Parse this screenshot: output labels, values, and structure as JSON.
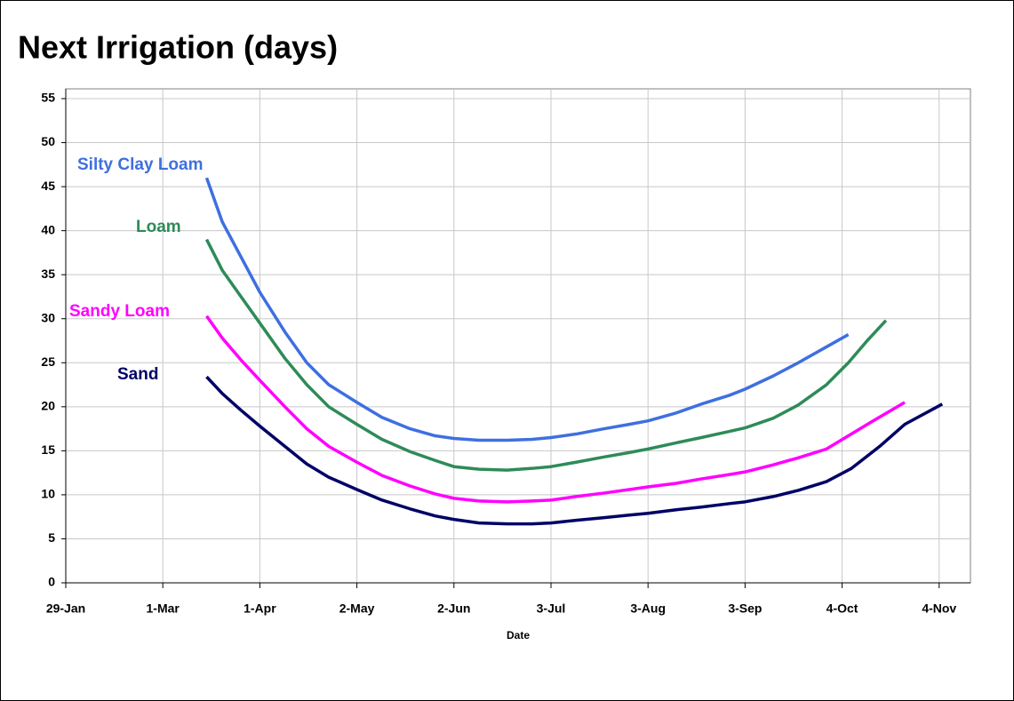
{
  "chart_data": {
    "type": "line",
    "title": "Next Irrigation (days)",
    "x_label": "Date",
    "xlim": [
      29,
      318
    ],
    "xticks": [
      {
        "value": 29,
        "label": "29-Jan"
      },
      {
        "value": 60,
        "label": "1-Mar"
      },
      {
        "value": 91,
        "label": "1-Apr"
      },
      {
        "value": 122,
        "label": "2-May"
      },
      {
        "value": 153,
        "label": "2-Jun"
      },
      {
        "value": 184,
        "label": "3-Jul"
      },
      {
        "value": 215,
        "label": "3-Aug"
      },
      {
        "value": 246,
        "label": "3-Sep"
      },
      {
        "value": 277,
        "label": "4-Oct"
      },
      {
        "value": 308,
        "label": "4-Nov"
      }
    ],
    "ylim": [
      0,
      55
    ],
    "yticks": [
      0,
      5,
      10,
      15,
      20,
      25,
      30,
      35,
      40,
      45,
      50,
      55
    ],
    "grid": true,
    "series": [
      {
        "name": "Silty Clay Loam",
        "color": "#3f6fe0",
        "x": [
          74,
          79,
          85,
          91,
          99,
          106,
          113,
          122,
          130,
          139,
          147,
          153,
          161,
          170,
          178,
          184,
          192,
          201,
          209,
          215,
          224,
          232,
          241,
          246,
          255,
          263,
          272,
          279
        ],
        "values": [
          46,
          41,
          37,
          33,
          28.5,
          25,
          22.5,
          20.5,
          18.8,
          17.5,
          16.7,
          16.4,
          16.2,
          16.2,
          16.3,
          16.5,
          16.9,
          17.5,
          18,
          18.4,
          19.3,
          20.3,
          21.3,
          22,
          23.5,
          25,
          26.8,
          28.2
        ]
      },
      {
        "name": "Loam",
        "color": "#2e8b57",
        "x": [
          74,
          79,
          85,
          91,
          99,
          106,
          113,
          122,
          130,
          139,
          147,
          153,
          161,
          170,
          178,
          184,
          192,
          201,
          209,
          215,
          224,
          232,
          241,
          246,
          255,
          263,
          272,
          279,
          285,
          291
        ],
        "values": [
          39,
          35.5,
          32.5,
          29.5,
          25.5,
          22.5,
          20,
          18,
          16.3,
          14.9,
          13.9,
          13.2,
          12.9,
          12.8,
          13,
          13.2,
          13.7,
          14.3,
          14.8,
          15.2,
          15.9,
          16.5,
          17.2,
          17.6,
          18.7,
          20.2,
          22.5,
          25,
          27.5,
          29.8
        ]
      },
      {
        "name": "Sandy Loam",
        "color": "#ff00ff",
        "x": [
          74,
          79,
          85,
          91,
          99,
          106,
          113,
          122,
          130,
          139,
          147,
          153,
          161,
          170,
          178,
          184,
          192,
          201,
          209,
          215,
          224,
          232,
          241,
          246,
          255,
          263,
          272,
          279,
          286,
          297
        ],
        "values": [
          30.3,
          27.8,
          25.3,
          23,
          20,
          17.5,
          15.5,
          13.7,
          12.2,
          11,
          10.1,
          9.6,
          9.3,
          9.2,
          9.3,
          9.4,
          9.8,
          10.2,
          10.6,
          10.9,
          11.3,
          11.8,
          12.3,
          12.6,
          13.4,
          14.2,
          15.2,
          16.7,
          18.2,
          20.5
        ]
      },
      {
        "name": "Sand",
        "color": "#000066",
        "x": [
          74,
          79,
          85,
          91,
          99,
          106,
          113,
          122,
          130,
          139,
          147,
          153,
          161,
          170,
          178,
          184,
          192,
          201,
          209,
          215,
          224,
          232,
          241,
          246,
          255,
          263,
          272,
          280,
          289,
          297,
          309
        ],
        "values": [
          23.4,
          21.5,
          19.6,
          17.8,
          15.5,
          13.5,
          12,
          10.6,
          9.4,
          8.4,
          7.6,
          7.2,
          6.8,
          6.7,
          6.7,
          6.8,
          7.1,
          7.4,
          7.7,
          7.9,
          8.3,
          8.6,
          9,
          9.2,
          9.8,
          10.5,
          11.5,
          13,
          15.5,
          18,
          20.3
        ]
      }
    ]
  }
}
